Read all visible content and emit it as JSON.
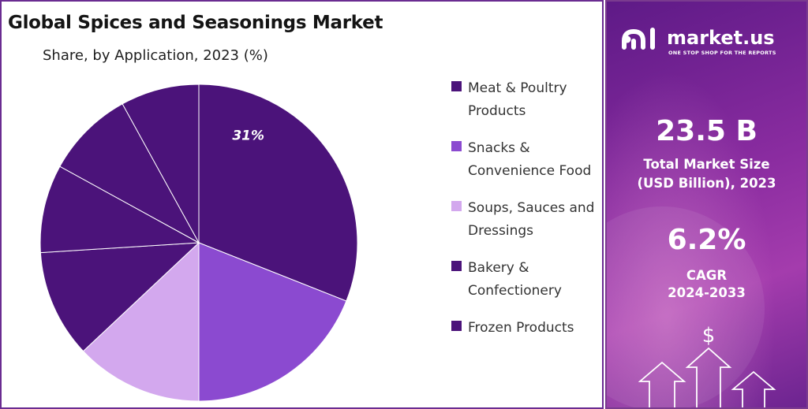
{
  "title": "Global Spices and Seasonings Market",
  "subtitle": "Share, by Application, 2023 (%)",
  "chart_data": {
    "type": "pie",
    "title": "Global Spices and Seasonings Market",
    "subtitle": "Share, by Application, 2023 (%)",
    "data_labels": [
      "31%"
    ],
    "slices": [
      {
        "name": "Meat & Poultry Products",
        "value": 31,
        "color": "#4b137a"
      },
      {
        "name": "Snacks & Convenience Food",
        "value": 19,
        "color": "#8b4ad0"
      },
      {
        "name": "Soups, Sauces and Dressings",
        "value": 13,
        "color": "#d3a8ee"
      },
      {
        "name": "Bakery & Confectionery",
        "value": 11,
        "color": "#4b137a"
      },
      {
        "name": "Frozen Products",
        "value": 9,
        "color": "#4b137a"
      },
      {
        "name": "",
        "value": 9,
        "color": "#4b137a"
      },
      {
        "name": "",
        "value": 8,
        "color": "#4b137a"
      }
    ],
    "legend_position": "right"
  },
  "legend": [
    {
      "label": "Meat & Poultry Products",
      "color": "#4b137a"
    },
    {
      "label": "Snacks & Convenience Food",
      "color": "#8b4ad0"
    },
    {
      "label": "Soups, Sauces and Dressings",
      "color": "#d3a8ee"
    },
    {
      "label": "Bakery & Confectionery",
      "color": "#4b137a"
    },
    {
      "label": "Frozen Products",
      "color": "#4b137a"
    }
  ],
  "brand": {
    "name": "market.us",
    "tagline": "ONE STOP SHOP FOR THE REPORTS"
  },
  "stats": [
    {
      "value": "23.5 B",
      "label_line1": "Total Market Size",
      "label_line2": "(USD Billion), 2023"
    },
    {
      "value": "6.2%",
      "label_line1": "CAGR",
      "label_line2": "2024-2033"
    }
  ],
  "decor_symbol": "$",
  "icons": [
    "market-us-logo-icon",
    "growth-arrows-icon",
    "dollar-icon"
  ],
  "colors": {
    "panel_purple": "#7a2a9e",
    "border": "#6a2c91",
    "slice_dark": "#4b137a",
    "slice_mid": "#8b4ad0",
    "slice_light": "#d3a8ee"
  }
}
